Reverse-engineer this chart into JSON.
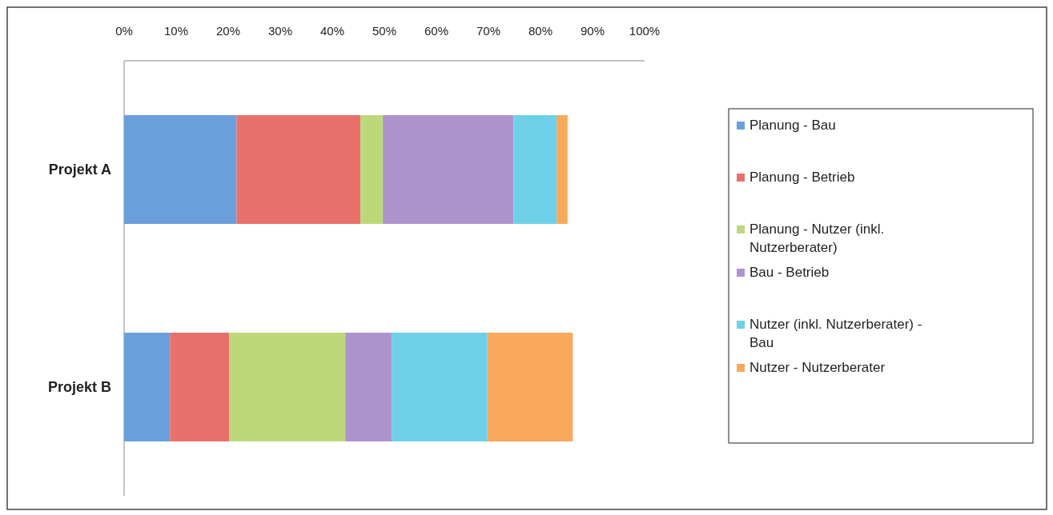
{
  "chart_data": {
    "type": "bar",
    "orientation": "horizontal",
    "stacked": true,
    "categories": [
      "Projekt A",
      "Projekt B"
    ],
    "series": [
      {
        "name": "Planung - Bau",
        "color": "#6a9fdc",
        "values": [
          21.6,
          8.8
        ]
      },
      {
        "name": "Planung - Betrieb",
        "color": "#e8716b",
        "values": [
          23.8,
          11.4
        ]
      },
      {
        "name": "Planung - Nutzer (inkl. Nutzerberater)",
        "color": "#bcd879",
        "values": [
          4.3,
          22.3
        ]
      },
      {
        "name": "Bau - Betrieb",
        "color": "#ad94cf",
        "values": [
          25.1,
          8.9
        ]
      },
      {
        "name": "Nutzer (inkl. Nutzerberater) - Bau",
        "color": "#6fd0ea",
        "values": [
          8.3,
          18.4
        ]
      },
      {
        "name": "Nutzer - Nutzerberater",
        "color": "#f9a95b",
        "values": [
          2.1,
          16.4
        ]
      }
    ],
    "xlim": [
      0,
      100
    ],
    "xticks": [
      {
        "value": 0,
        "label": "0%"
      },
      {
        "value": 10,
        "label": "10%"
      },
      {
        "value": 20,
        "label": "20%"
      },
      {
        "value": 30,
        "label": "30%"
      },
      {
        "value": 40,
        "label": "40%"
      },
      {
        "value": 50,
        "label": "50%"
      },
      {
        "value": 60,
        "label": "60%"
      },
      {
        "value": 70,
        "label": "70%"
      },
      {
        "value": 80,
        "label": "80%"
      },
      {
        "value": 90,
        "label": "90%"
      },
      {
        "value": 100,
        "label": "100%"
      }
    ],
    "legend": "right"
  }
}
